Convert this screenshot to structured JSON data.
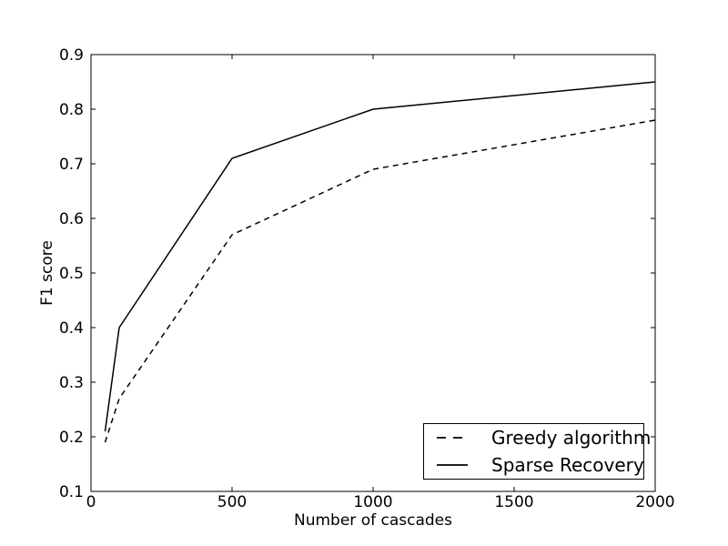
{
  "figure": {
    "background_color": "#ffffff",
    "foreground_color": "#000000"
  },
  "chart_data": {
    "type": "line",
    "title": "",
    "xlabel": "Number of cascades",
    "ylabel": "F1 score",
    "xlim": [
      0,
      2000
    ],
    "ylim": [
      0.1,
      0.9
    ],
    "x_ticks": [
      0,
      500,
      1000,
      1500,
      2000
    ],
    "y_ticks": [
      0.1,
      0.2,
      0.3,
      0.4,
      0.5,
      0.6,
      0.7,
      0.8,
      0.9
    ],
    "grid": false,
    "legend_position": "lower right",
    "series": [
      {
        "name": "Greedy algorithm",
        "style": "dashed",
        "color": "#000000",
        "x": [
          50,
          100,
          500,
          1000,
          2000
        ],
        "y": [
          0.19,
          0.27,
          0.57,
          0.69,
          0.78
        ]
      },
      {
        "name": "Sparse Recovery",
        "style": "solid",
        "color": "#000000",
        "x": [
          50,
          100,
          500,
          1000,
          2000
        ],
        "y": [
          0.21,
          0.4,
          0.71,
          0.8,
          0.85
        ]
      }
    ]
  }
}
